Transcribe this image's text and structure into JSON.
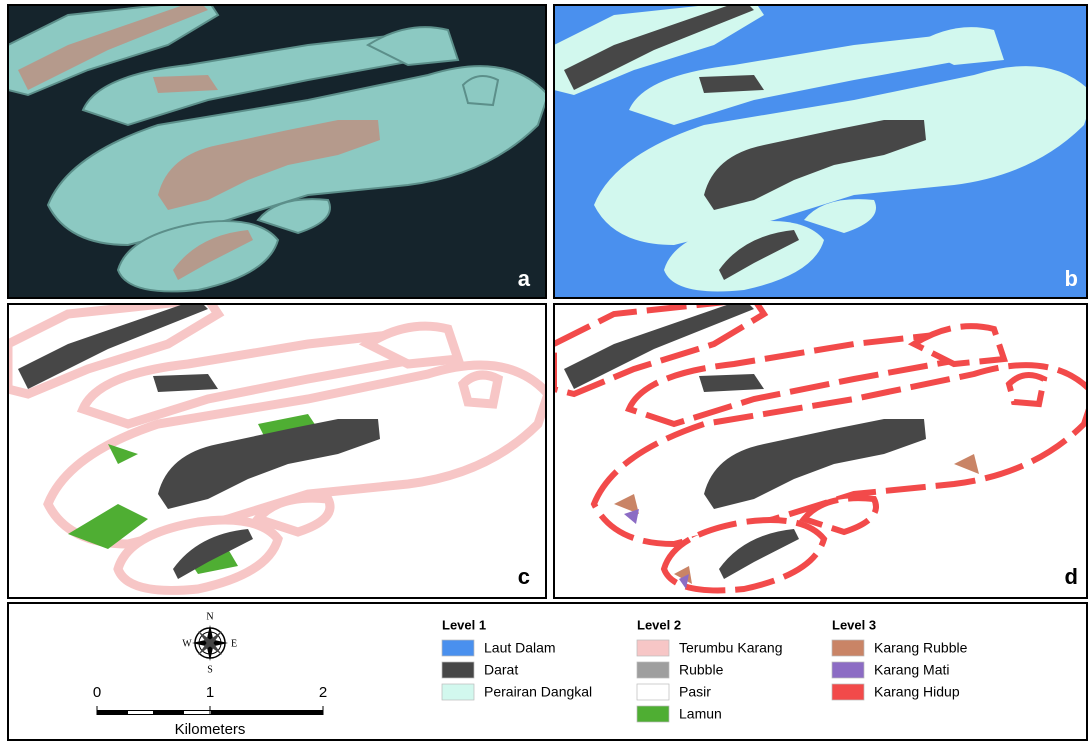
{
  "panels": [
    {
      "label": "a"
    },
    {
      "label": "b"
    },
    {
      "label": "c"
    },
    {
      "label": "d"
    }
  ],
  "compass": {
    "north": "N",
    "south": "S",
    "east": "E",
    "west": "W"
  },
  "scale_bar": {
    "ticks": [
      0,
      1,
      2
    ],
    "unit": "Kilometers"
  },
  "legend": {
    "groups": [
      {
        "title": "Level 1",
        "items": [
          {
            "label": "Laut Dalam",
            "color": "#4a90ee"
          },
          {
            "label": "Darat",
            "color": "#474747"
          },
          {
            "label": "Perairan Dangkal",
            "color": "#d2f8ee"
          }
        ]
      },
      {
        "title": "Level 2",
        "items": [
          {
            "label": "Terumbu Karang",
            "color": "#f7c6c6"
          },
          {
            "label": "Rubble",
            "color": "#9e9e9e"
          },
          {
            "label": "Pasir",
            "color": "#ffffff"
          },
          {
            "label": "Lamun",
            "color": "#4fae33"
          }
        ]
      },
      {
        "title": "Level 3",
        "items": [
          {
            "label": "Karang Rubble",
            "color": "#c98466"
          },
          {
            "label": "Karang Mati",
            "color": "#8c6cc4"
          },
          {
            "label": "Karang Hidup",
            "color": "#f24a4a"
          }
        ]
      }
    ]
  }
}
